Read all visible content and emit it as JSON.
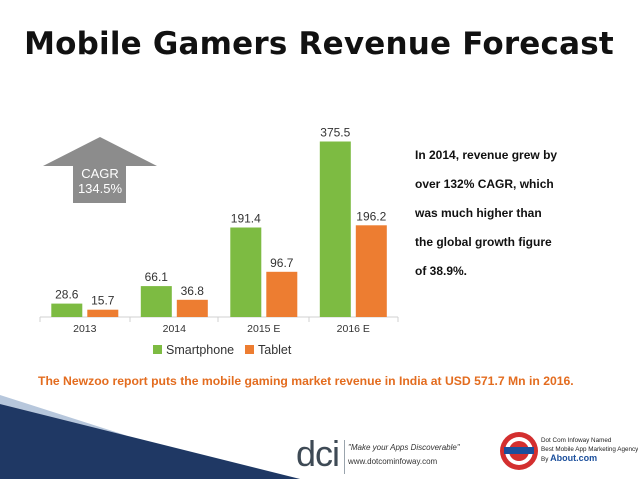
{
  "title": "Mobile Gamers Revenue Forecast",
  "cagr": {
    "label": "CAGR",
    "value": "134.5%"
  },
  "chart_data": {
    "type": "bar",
    "categories": [
      "2013",
      "2014",
      "2015 E",
      "2016 E"
    ],
    "series": [
      {
        "name": "Smartphone",
        "values": [
          28.6,
          66.1,
          191.4,
          375.5
        ],
        "color": "#7dbb42"
      },
      {
        "name": "Tablet",
        "values": [
          15.7,
          36.8,
          96.7,
          196.2
        ],
        "color": "#ed7d31"
      }
    ],
    "ylim": [
      0,
      400
    ],
    "grid": false,
    "legend": "bottom",
    "xlabel": "",
    "ylabel": ""
  },
  "note_lines": [
    "In 2014, revenue grew by",
    "over 132% CAGR, which",
    "was much higher than",
    "the global growth figure",
    "of 38.9%."
  ],
  "footnote": "The Newzoo report puts the mobile gaming market revenue in India at USD 571.7 Mn in 2016.",
  "footer": {
    "logo": "dci",
    "tagline": "\"Make your Apps Discoverable\"",
    "url": "www.dotcominfoway.com",
    "award_line1": "Dot Com Infoway Named",
    "award_line2": "Best Mobile App Marketing Agency",
    "award_by": "By",
    "award_brand": "About.com"
  },
  "colors": {
    "accent_blue": "#1f3864",
    "footnote_orange": "#e36c1f",
    "arrow_gray": "#8c8c8c"
  }
}
